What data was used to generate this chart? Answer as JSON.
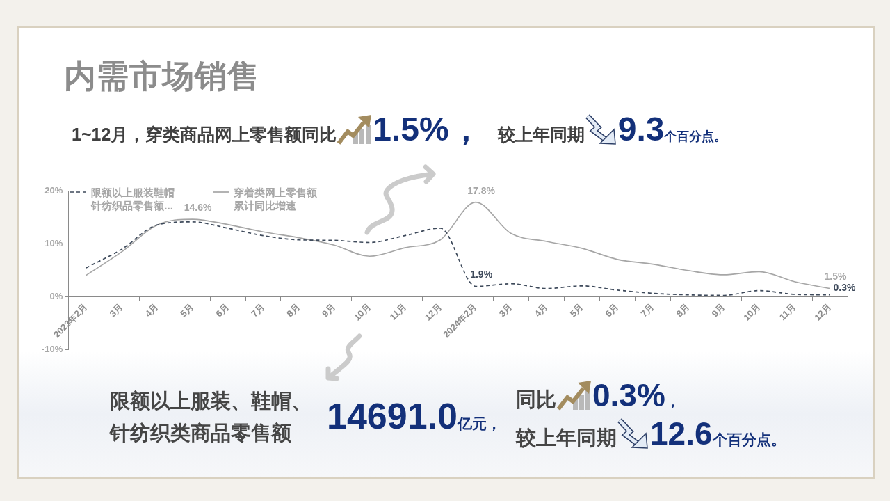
{
  "chart_data": {
    "type": "line",
    "title": "内需市场销售",
    "annotations": [
      "1~12月，穿类商品网上零售额同比",
      "1.5%，",
      "较上年同期",
      "9.3",
      "个百分点。",
      "限额以上服装、鞋帽、针纺织类商品零售额",
      "14691.0",
      "亿元，",
      "同比",
      "0.3%",
      "，",
      "较上年同期",
      "12.6",
      "个百分点。"
    ],
    "categories": [
      "2023年2月",
      "3月",
      "4月",
      "5月",
      "6月",
      "7月",
      "8月",
      "9月",
      "10月",
      "11月",
      "12月",
      "2024年2月",
      "3月",
      "4月",
      "5月",
      "6月",
      "7月",
      "8月",
      "9月",
      "10月",
      "11月",
      "12月"
    ],
    "series": [
      {
        "name": "限额以上服装鞋帽针纺织品零售额...",
        "color": "#3e4a5b",
        "line_style": "dashed",
        "values": [
          5.4,
          8.9,
          13.5,
          14.1,
          12.9,
          11.5,
          10.7,
          10.6,
          10.2,
          11.5,
          12.9,
          1.9,
          2.4,
          1.5,
          2.0,
          1.2,
          0.6,
          0.3,
          0.2,
          1.1,
          0.4,
          0.3
        ],
        "value_labels": [
          null,
          null,
          null,
          null,
          null,
          null,
          null,
          null,
          null,
          null,
          null,
          "1.9%",
          null,
          null,
          null,
          null,
          null,
          null,
          null,
          null,
          null,
          "0.3%"
        ]
      },
      {
        "name": "穿着类网上零售额累计同比增速",
        "color": "#a6a6a6",
        "line_style": "solid",
        "values": [
          4.0,
          8.4,
          13.5,
          14.6,
          13.6,
          12.2,
          11.1,
          9.7,
          7.6,
          9.2,
          10.7,
          17.8,
          11.9,
          10.4,
          9.1,
          7.0,
          6.1,
          4.9,
          4.1,
          4.7,
          2.8,
          1.5
        ],
        "value_labels": [
          null,
          null,
          null,
          "14.6%",
          null,
          null,
          null,
          null,
          null,
          null,
          null,
          "17.8%",
          null,
          null,
          null,
          null,
          null,
          null,
          null,
          null,
          null,
          "1.5%"
        ]
      }
    ],
    "ylim": [
      -10,
      20
    ],
    "yticks": [
      {
        "value": -10,
        "label": "-10%"
      },
      {
        "value": 0,
        "label": "0%"
      },
      {
        "value": 10,
        "label": "10%"
      },
      {
        "value": 20,
        "label": "20%"
      }
    ],
    "legend": "top left",
    "marker": "none"
  }
}
